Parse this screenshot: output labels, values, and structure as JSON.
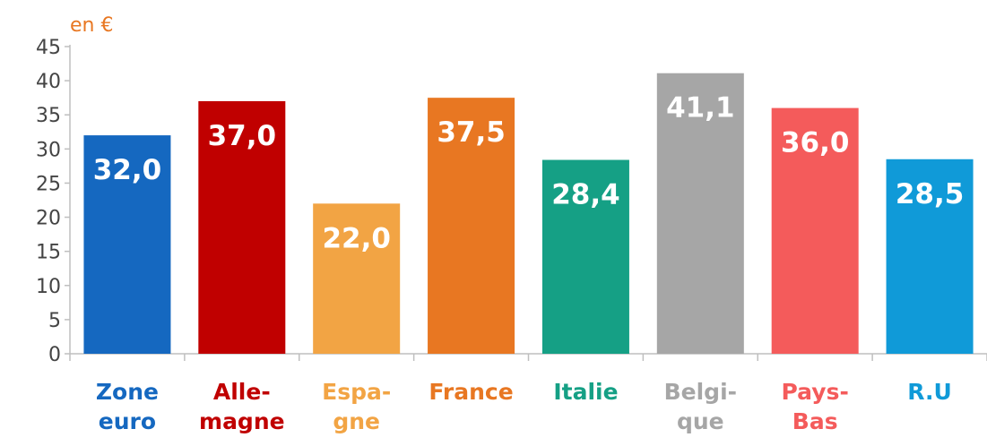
{
  "chart_data": {
    "type": "bar",
    "unit_label": "en €",
    "ylim": [
      0,
      45
    ],
    "yticks": [
      "0",
      "5",
      "10",
      "15",
      "20",
      "25",
      "30",
      "35",
      "40",
      "45"
    ],
    "grid": false,
    "legend": "none",
    "categories": [
      {
        "label": [
          "Zone",
          "euro"
        ],
        "value": 32.0,
        "value_label": "32,0",
        "color": "#1568c0"
      },
      {
        "label": [
          "Alle-",
          "magne"
        ],
        "value": 37.0,
        "value_label": "37,0",
        "color": "#c00000"
      },
      {
        "label": [
          "Espa-",
          "gne"
        ],
        "value": 22.0,
        "value_label": "22,0",
        "color": "#f2a444"
      },
      {
        "label": [
          "France"
        ],
        "value": 37.5,
        "value_label": "37,5",
        "color": "#e87722"
      },
      {
        "label": [
          "Italie"
        ],
        "value": 28.4,
        "value_label": "28,4",
        "color": "#15a085"
      },
      {
        "label": [
          "Belgi-",
          "que"
        ],
        "value": 41.1,
        "value_label": "41,1",
        "color": "#a6a6a6"
      },
      {
        "label": [
          "Pays-",
          "Bas"
        ],
        "value": 36.0,
        "value_label": "36,0",
        "color": "#f45b5b"
      },
      {
        "label": [
          "R.U"
        ],
        "value": 28.5,
        "value_label": "28,5",
        "color": "#109ad8"
      }
    ]
  }
}
